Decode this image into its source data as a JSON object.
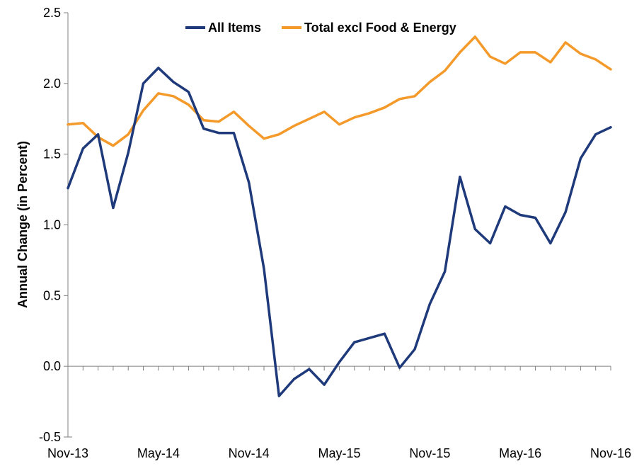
{
  "chart_data": {
    "type": "line",
    "title": "",
    "xlabel": "",
    "ylabel": "Annual Change (in Percent)",
    "ylim": [
      -0.5,
      2.5
    ],
    "y_ticks": [
      -0.5,
      0.0,
      0.5,
      1.0,
      1.5,
      2.0,
      2.5
    ],
    "y_tick_labels": [
      "-0.5",
      "0.0",
      "0.5",
      "1.0",
      "1.5",
      "2.0",
      "2.5"
    ],
    "x": [
      "Nov-13",
      "Dec-13",
      "Jan-14",
      "Feb-14",
      "Mar-14",
      "Apr-14",
      "May-14",
      "Jun-14",
      "Jul-14",
      "Aug-14",
      "Sep-14",
      "Oct-14",
      "Nov-14",
      "Dec-14",
      "Jan-15",
      "Feb-15",
      "Mar-15",
      "Apr-15",
      "May-15",
      "Jun-15",
      "Jul-15",
      "Aug-15",
      "Sep-15",
      "Oct-15",
      "Nov-15",
      "Dec-15",
      "Jan-16",
      "Feb-16",
      "Mar-16",
      "Apr-16",
      "May-16",
      "Jun-16",
      "Jul-16",
      "Aug-16",
      "Sep-16",
      "Oct-16",
      "Nov-16"
    ],
    "x_tick_labels": [
      "Nov-13",
      "May-14",
      "Nov-14",
      "May-15",
      "Nov-15",
      "May-16",
      "Nov-16"
    ],
    "grid": false,
    "legend": "top-center",
    "series": [
      {
        "name": "All Items",
        "color": "#1f3a7a",
        "values": [
          1.26,
          1.54,
          1.64,
          1.12,
          1.51,
          2.0,
          2.11,
          2.01,
          1.94,
          1.68,
          1.65,
          1.65,
          1.3,
          0.69,
          -0.21,
          -0.09,
          -0.02,
          -0.13,
          0.03,
          0.17,
          0.2,
          0.23,
          -0.01,
          0.12,
          0.44,
          0.67,
          1.34,
          0.97,
          0.87,
          1.13,
          1.07,
          1.05,
          0.87,
          1.09,
          1.47,
          1.64,
          1.69
        ]
      },
      {
        "name": "Total excl Food & Energy",
        "color": "#f39a2b",
        "values": [
          1.71,
          1.72,
          1.62,
          1.56,
          1.64,
          1.81,
          1.93,
          1.91,
          1.85,
          1.74,
          1.73,
          1.8,
          1.7,
          1.61,
          1.64,
          1.7,
          1.75,
          1.8,
          1.71,
          1.76,
          1.79,
          1.83,
          1.89,
          1.91,
          2.01,
          2.09,
          2.22,
          2.33,
          2.19,
          2.14,
          2.22,
          2.22,
          2.15,
          2.29,
          2.21,
          2.17,
          2.1
        ]
      }
    ]
  }
}
